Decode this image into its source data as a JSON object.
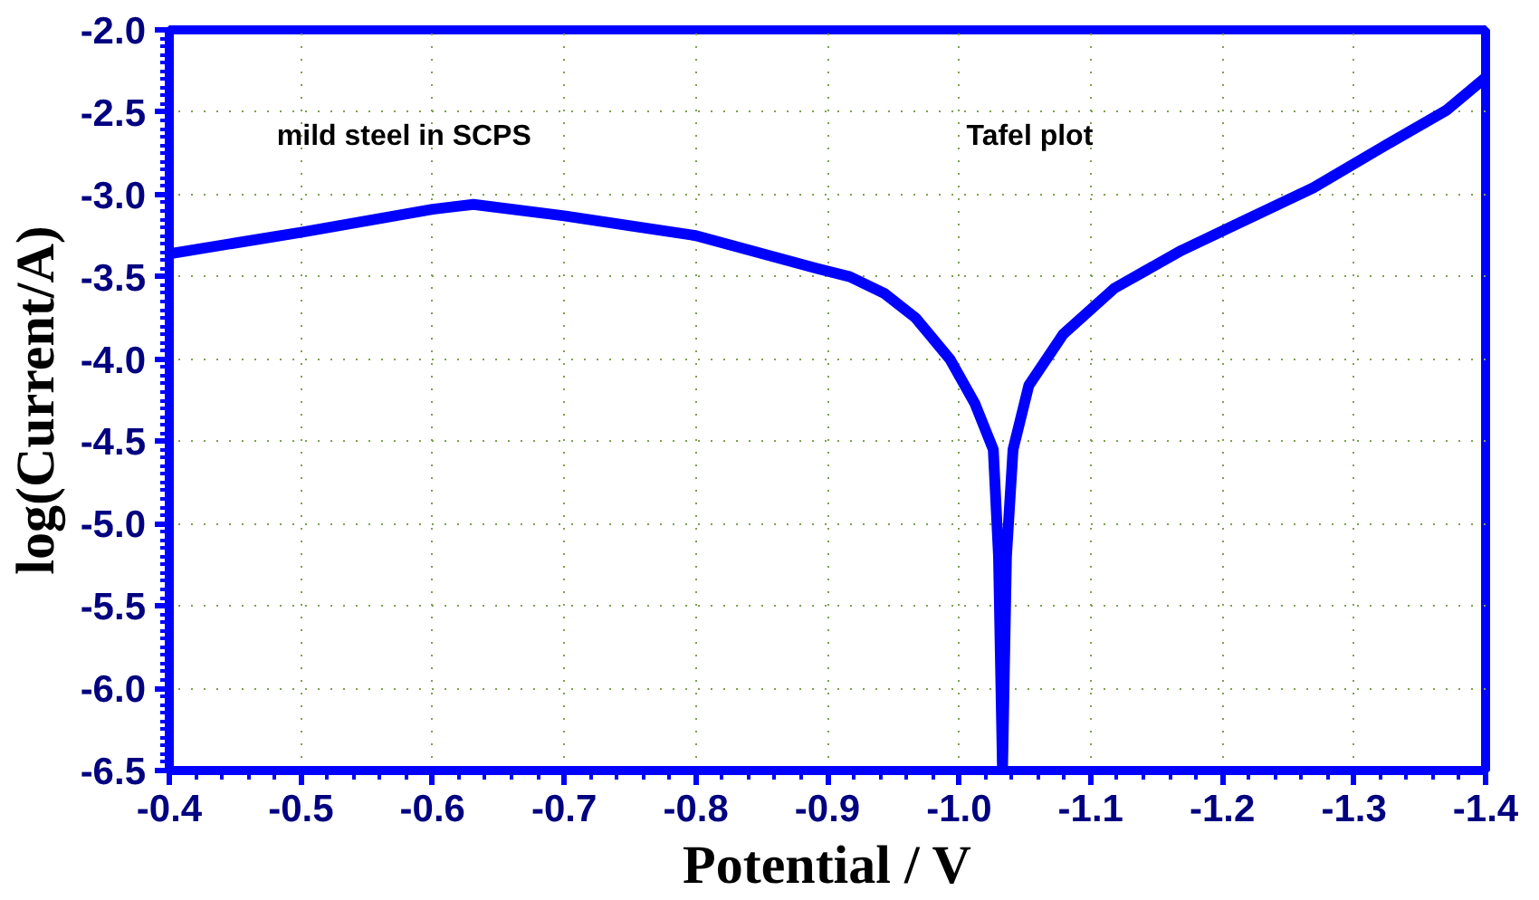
{
  "chart_data": {
    "type": "line",
    "xlabel": "Potential / V",
    "ylabel": "log(Current/A)",
    "annotations": [
      "mild steel in SCPS",
      "Tafel plot"
    ],
    "xlim": [
      -0.4,
      -1.4
    ],
    "ylim": [
      -6.5,
      -2.0
    ],
    "xticks": [
      -0.4,
      -0.5,
      -0.6,
      -0.7,
      -0.8,
      -0.9,
      {
        "value": -1,
        "label": "-1.0"
      },
      -1.1,
      -1.2,
      -1.3,
      -1.4
    ],
    "yticks": [
      {
        "value": -2,
        "label": "-2.0"
      },
      -2.5,
      {
        "value": -3,
        "label": "-3.0"
      },
      -3.5,
      {
        "value": -4,
        "label": "-4.0"
      },
      -4.5,
      {
        "value": -5,
        "label": "-5.0"
      },
      -5.5,
      {
        "value": -6,
        "label": "-6.0"
      },
      -6.5
    ],
    "grid": true,
    "marker": "none",
    "line_style": "solid",
    "series": [
      {
        "color": "#0000ff",
        "x": [
          -0.4,
          -0.5,
          -0.6,
          -0.631,
          -0.7,
          -0.8,
          -0.892,
          -0.917,
          -0.943,
          -0.967,
          -0.993,
          -1.012,
          -1.026,
          -1.03,
          -1.033,
          -1.036,
          -1.041,
          -1.053,
          -1.079,
          -1.118,
          -1.169,
          -1.219,
          -1.269,
          -1.32,
          -1.37,
          -1.4
        ],
        "values": [
          -3.36,
          -3.23,
          -3.09,
          -3.06,
          -3.13,
          -3.25,
          -3.45,
          -3.5,
          -3.6,
          -3.75,
          -4.0,
          -4.27,
          -4.55,
          -5.2,
          -6.5,
          -5.2,
          -4.55,
          -4.16,
          -3.85,
          -3.57,
          -3.34,
          -3.15,
          -2.96,
          -2.72,
          -2.49,
          -2.29
        ]
      }
    ]
  }
}
